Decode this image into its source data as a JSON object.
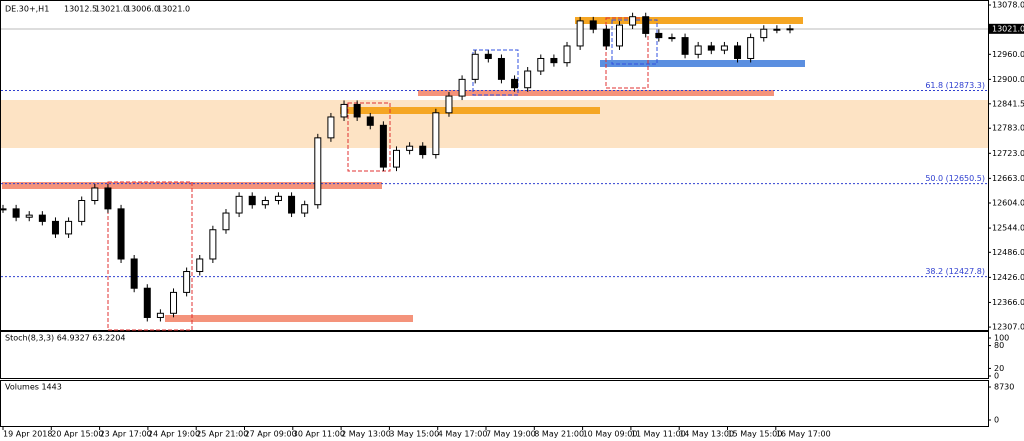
{
  "header": {
    "symbol": "DE.30+,H1",
    "ohlc": [
      "13012.5",
      "13021.0",
      "13006.0",
      "13021.0"
    ]
  },
  "chart_data": {
    "type": "candlestick",
    "color": "#000000",
    "values": [
      12590,
      12570,
      12575,
      12560,
      12530,
      12560,
      12610,
      12640,
      12590,
      12470,
      12400,
      12330,
      12340,
      12390,
      12440,
      12470,
      12540,
      12580,
      12620,
      12600,
      12610,
      12620,
      12580,
      12600,
      12760,
      12810,
      12840,
      12810,
      12790,
      12690,
      12730,
      12740,
      12720,
      12820,
      12860,
      12900,
      12960,
      12950,
      12900,
      12880,
      12920,
      12950,
      12940,
      12980,
      13040,
      13020,
      12980,
      13030,
      13050,
      13010,
      13000,
      13000,
      12960,
      12980,
      12970,
      12980,
      12950,
      13000,
      13020,
      13020,
      13021
    ],
    "ylim": [
      12300,
      13090
    ],
    "yticks": [
      {
        "value": 13078,
        "label": "13078.0"
      },
      {
        "value": 12960,
        "label": "12960.0"
      },
      {
        "value": 12900,
        "label": "12900.0"
      },
      {
        "value": 12841.5,
        "label": "12841.5"
      },
      {
        "value": 12783,
        "label": "12783.0"
      },
      {
        "value": 12723,
        "label": "12723.0"
      },
      {
        "value": 12663,
        "label": "12663.0"
      },
      {
        "value": 12604,
        "label": "12604.0"
      },
      {
        "value": 12544,
        "label": "12544.0"
      },
      {
        "value": 12486,
        "label": "12486.0"
      },
      {
        "value": 12426,
        "label": "12426.0"
      },
      {
        "value": 12366,
        "label": "12366.0"
      },
      {
        "value": 12307,
        "label": "12307.0"
      }
    ],
    "last_price": {
      "value": 13021,
      "label": "13021.0"
    },
    "fib_levels": [
      {
        "value": 12873.3,
        "label": "61.8 (12873.3)"
      },
      {
        "value": 12650.5,
        "label": "50.0 (12650.5)"
      },
      {
        "value": 12427.8,
        "label": "38.2 (12427.8)"
      }
    ],
    "x_labels": [
      "19 Apr 2018",
      "20 Apr 15:00",
      "23 Apr 17:00",
      "24 Apr 19:00",
      "25 Apr 21:00",
      "27 Apr 09:00",
      "30 Apr 11:00",
      "2 May 13:00",
      "3 May 15:00",
      "4 May 17:00",
      "7 May 19:00",
      "8 May 21:00",
      "10 May 09:00",
      "11 May 11:00",
      "14 May 13:00",
      "15 May 15:00",
      "16 May 17:00"
    ]
  },
  "stoch": {
    "label": "Stoch(8,3,3) 64.9327 63.2204",
    "ylim": [
      0,
      100
    ],
    "yticks": [
      100,
      80,
      20,
      0
    ]
  },
  "volumes": {
    "label": "Volumes 1443",
    "ylim": [
      0,
      8730
    ],
    "yticks": [
      8730,
      0
    ]
  }
}
